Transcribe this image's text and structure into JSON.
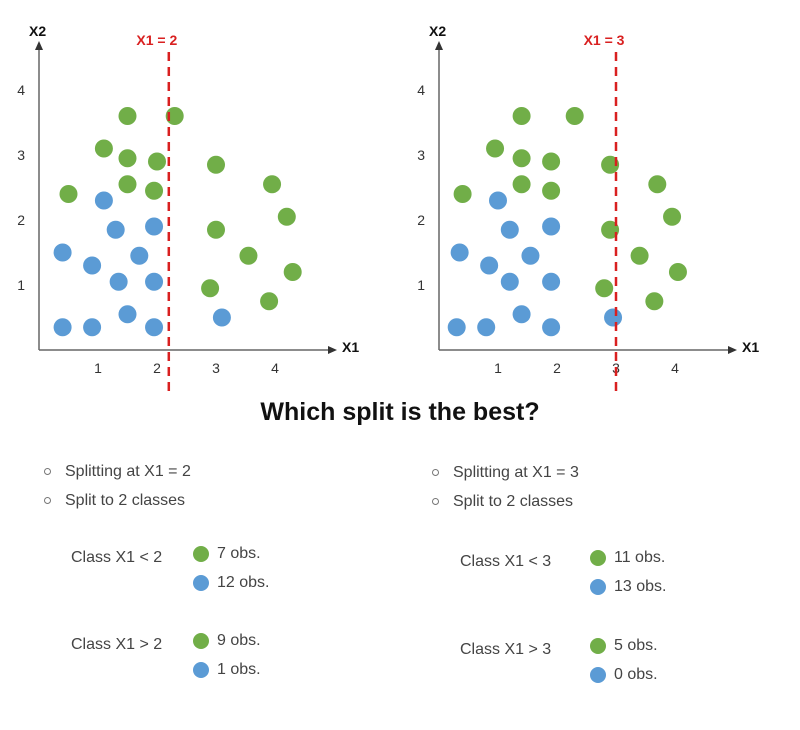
{
  "colors": {
    "green": "#71ae48",
    "blue": "#5b9bd5",
    "split": "#d92020",
    "axis": "#666666"
  },
  "chart_data": [
    {
      "type": "scatter",
      "split_label": "X1 = 2",
      "split_x": 2.2,
      "xlabel": "X1",
      "ylabel": "X2",
      "xticks": [
        "1",
        "2",
        "3",
        "4"
      ],
      "yticks": [
        "1",
        "2",
        "3",
        "4"
      ],
      "xlim": [
        0,
        4.8
      ],
      "ylim": [
        0,
        4.4
      ],
      "series": [
        {
          "color": "green",
          "points": [
            [
              1.5,
              3.6
            ],
            [
              2.3,
              3.6
            ],
            [
              1.1,
              3.1
            ],
            [
              1.5,
              2.95
            ],
            [
              2.0,
              2.9
            ],
            [
              3.0,
              2.85
            ],
            [
              0.5,
              2.4
            ],
            [
              1.5,
              2.55
            ],
            [
              1.95,
              2.45
            ],
            [
              3.95,
              2.55
            ],
            [
              4.2,
              2.05
            ],
            [
              3.0,
              1.85
            ],
            [
              3.55,
              1.45
            ],
            [
              4.3,
              1.2
            ],
            [
              2.9,
              0.95
            ],
            [
              3.9,
              0.75
            ]
          ]
        },
        {
          "color": "blue",
          "points": [
            [
              1.1,
              2.3
            ],
            [
              1.3,
              1.85
            ],
            [
              1.95,
              1.9
            ],
            [
              0.4,
              1.5
            ],
            [
              0.9,
              1.3
            ],
            [
              1.7,
              1.45
            ],
            [
              1.35,
              1.05
            ],
            [
              1.95,
              1.05
            ],
            [
              0.4,
              0.35
            ],
            [
              0.9,
              0.35
            ],
            [
              1.5,
              0.55
            ],
            [
              1.95,
              0.35
            ],
            [
              3.1,
              0.5
            ]
          ]
        }
      ]
    },
    {
      "type": "scatter",
      "split_label": "X1 = 3",
      "split_x": 3.0,
      "xlabel": "X1",
      "ylabel": "X2",
      "xticks": [
        "1",
        "2",
        "3",
        "4"
      ],
      "yticks": [
        "1",
        "2",
        "3",
        "4"
      ],
      "xlim": [
        0,
        4.8
      ],
      "ylim": [
        0,
        4.4
      ],
      "series": [
        {
          "color": "green",
          "points": [
            [
              1.4,
              3.6
            ],
            [
              2.3,
              3.6
            ],
            [
              0.95,
              3.1
            ],
            [
              1.4,
              2.95
            ],
            [
              1.9,
              2.9
            ],
            [
              2.9,
              2.85
            ],
            [
              0.4,
              2.4
            ],
            [
              1.4,
              2.55
            ],
            [
              1.9,
              2.45
            ],
            [
              3.7,
              2.55
            ],
            [
              3.95,
              2.05
            ],
            [
              2.9,
              1.85
            ],
            [
              3.4,
              1.45
            ],
            [
              4.05,
              1.2
            ],
            [
              2.8,
              0.95
            ],
            [
              3.65,
              0.75
            ]
          ]
        },
        {
          "color": "blue",
          "points": [
            [
              1.0,
              2.3
            ],
            [
              1.2,
              1.85
            ],
            [
              1.9,
              1.9
            ],
            [
              0.35,
              1.5
            ],
            [
              0.85,
              1.3
            ],
            [
              1.55,
              1.45
            ],
            [
              1.2,
              1.05
            ],
            [
              1.9,
              1.05
            ],
            [
              0.3,
              0.35
            ],
            [
              0.8,
              0.35
            ],
            [
              1.4,
              0.55
            ],
            [
              1.9,
              0.35
            ],
            [
              2.95,
              0.5
            ]
          ]
        }
      ]
    }
  ],
  "question": "Which split is the best?",
  "left": {
    "bullets": [
      "Splitting at X1 = 2",
      "Split to 2 classes"
    ],
    "classes": [
      {
        "label": "Class X1 < 2",
        "green": "7 obs.",
        "blue": "12 obs."
      },
      {
        "label": "Class X1 > 2",
        "green": "9 obs.",
        "blue": "1 obs."
      }
    ]
  },
  "right": {
    "bullets": [
      "Splitting at X1 = 3",
      "Split to 2 classes"
    ],
    "classes": [
      {
        "label": "Class X1 < 3",
        "green": "11 obs.",
        "blue": "13 obs."
      },
      {
        "label": "Class X1 > 3",
        "green": "5 obs.",
        "blue": "0 obs."
      }
    ]
  }
}
